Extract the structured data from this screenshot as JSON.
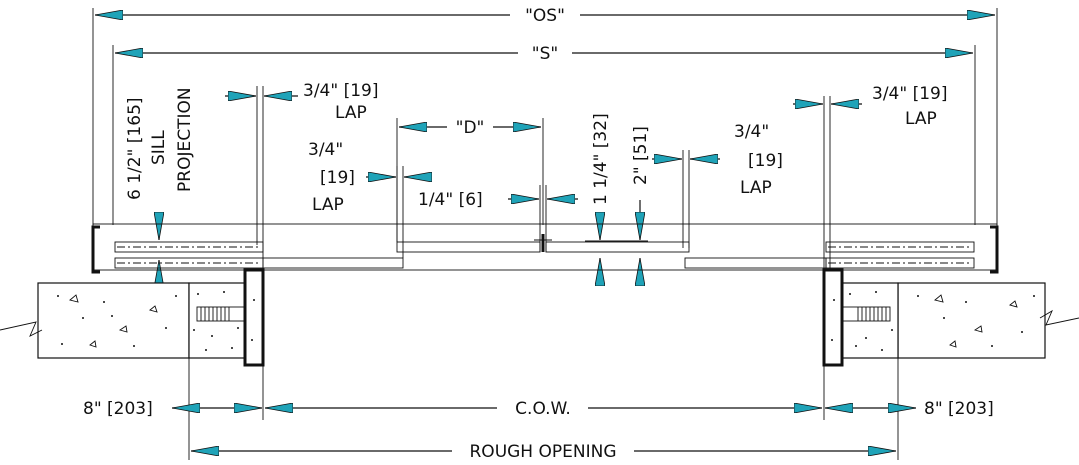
{
  "colors": {
    "arrow": "#1fa3b8",
    "line": "#111111",
    "background": "#ffffff"
  },
  "labels": {
    "os": "\"OS\"",
    "s": "\"S\"",
    "d": "\"D\"",
    "sill_projection": {
      "line1": "6 1/2\" [165]",
      "line2": "SILL",
      "line3": "PROJECTION"
    },
    "lap_top_left": {
      "value": "3/4\" [19]",
      "lap": "LAP"
    },
    "lap_left": {
      "value": "3/4\"",
      "metric": "[19]",
      "lap": "LAP"
    },
    "quarter": "1/4\" [6]",
    "one_quarter": "1 1/4\" [32]",
    "two": "2\" [51]",
    "lap_right": {
      "value": "3/4\"",
      "metric": "[19]",
      "lap": "LAP"
    },
    "lap_top_right": {
      "value": "3/4\" [19]",
      "lap": "LAP"
    },
    "bottom_left": "8\" [203]",
    "cow": "C.O.W.",
    "bottom_right": "8\" [203]",
    "rough_opening": "ROUGH OPENING"
  }
}
